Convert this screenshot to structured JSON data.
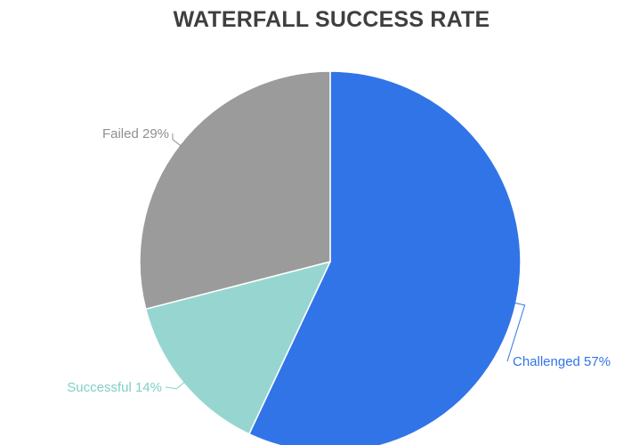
{
  "chart_data": {
    "type": "pie",
    "title": "WATERFALL SUCCESS RATE",
    "slices": [
      {
        "name": "Challenged",
        "value": 57,
        "label": "Challenged 57%",
        "color": "#3174e8"
      },
      {
        "name": "Successful",
        "value": 14,
        "label": "Successful 14%",
        "color": "#97d6d0"
      },
      {
        "name": "Failed",
        "value": 29,
        "label": "Failed 29%",
        "color": "#9b9b9b"
      }
    ],
    "start_angle": "12 o'clock",
    "direction": "clockwise",
    "legend": "none",
    "label_placement": "outside with leader lines"
  }
}
